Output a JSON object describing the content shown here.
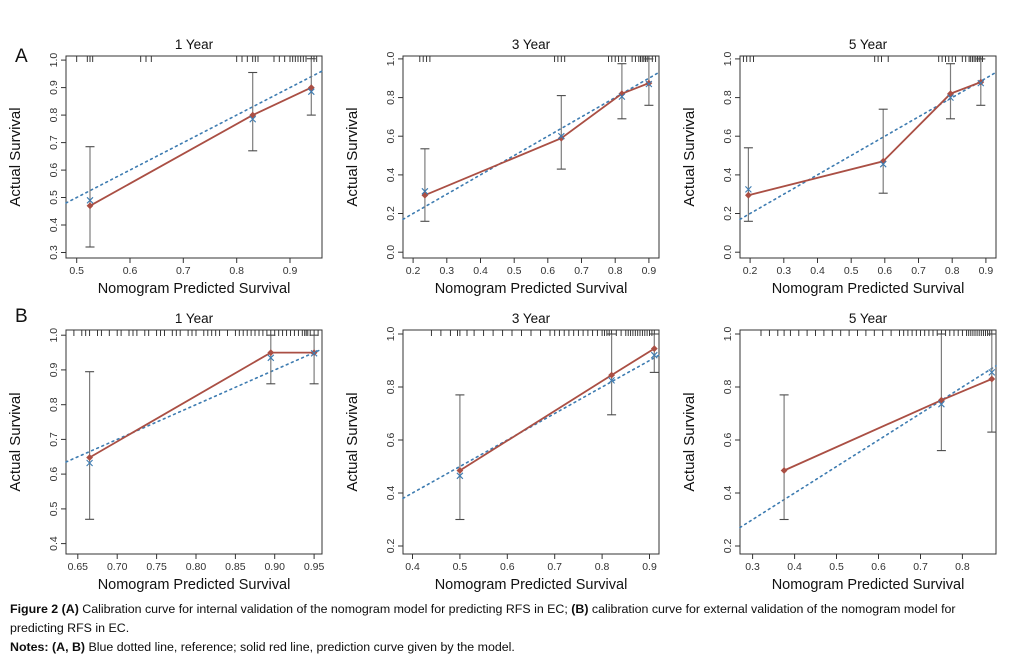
{
  "figure": {
    "row_labels": [
      "A",
      "B"
    ]
  },
  "colors": {
    "prediction_red": "#aa4f44",
    "reference_blue": "#3e7cb1",
    "error_bar_gray": "#7d7d7d",
    "error_cap_gray": "#4a4a4a",
    "axis": "#333333",
    "rug": "#222222",
    "text": "#111111"
  },
  "chart_layout": {
    "grid": false,
    "legend": "none"
  },
  "chart_data": [
    {
      "type": "line",
      "panel_group": "A",
      "title": "1 Year",
      "xlabel": "Nomogram Predicted Survival",
      "ylabel": "Actual Survival",
      "xlim": [
        0.48,
        0.96
      ],
      "ylim": [
        0.28,
        1.015
      ],
      "xticks": [
        0.5,
        0.6,
        0.7,
        0.8,
        0.9
      ],
      "xtick_labels": [
        "0.5",
        "0.6",
        "0.7",
        "0.8",
        "0.9"
      ],
      "yticks": [
        0.3,
        0.4,
        0.5,
        0.6,
        0.7,
        0.8,
        0.9,
        1.0
      ],
      "ytick_labels": [
        "0.3",
        "0.4",
        "0.5",
        "0.6",
        "0.7",
        "0.8",
        "0.9",
        "1.0"
      ],
      "series": [
        {
          "name": "Prediction curve (solid red line)",
          "color_key": "prediction_red",
          "points": [
            {
              "x": 0.525,
              "y": 0.47,
              "err_lo": 0.32,
              "err_hi": 0.685,
              "xmark_y": 0.49
            },
            {
              "x": 0.83,
              "y": 0.8,
              "err_lo": 0.67,
              "err_hi": 0.955,
              "xmark_y": 0.785
            },
            {
              "x": 0.94,
              "y": 0.9,
              "err_lo": 0.8,
              "err_hi": 1.005,
              "xmark_y": 0.885
            }
          ]
        },
        {
          "name": "Reference (blue dotted line)",
          "color_key": "reference_blue",
          "y_equals_x": true
        }
      ],
      "rug_x": [
        0.5,
        0.52,
        0.525,
        0.53,
        0.62,
        0.63,
        0.64,
        0.8,
        0.81,
        0.82,
        0.83,
        0.835,
        0.84,
        0.87,
        0.88,
        0.89,
        0.9,
        0.905,
        0.91,
        0.915,
        0.92,
        0.925,
        0.93,
        0.94,
        0.945,
        0.95
      ]
    },
    {
      "type": "line",
      "panel_group": "A",
      "title": "3 Year",
      "xlabel": "Nomogram Predicted Survival",
      "ylabel": "Actual Survival",
      "xlim": [
        0.17,
        0.93
      ],
      "ylim": [
        -0.03,
        1.015
      ],
      "xticks": [
        0.2,
        0.3,
        0.4,
        0.5,
        0.6,
        0.7,
        0.8,
        0.9
      ],
      "xtick_labels": [
        "0.2",
        "0.3",
        "0.4",
        "0.5",
        "0.6",
        "0.7",
        "0.8",
        "0.9"
      ],
      "yticks": [
        0.0,
        0.2,
        0.4,
        0.6,
        0.8,
        1.0
      ],
      "ytick_labels": [
        "0.0",
        "0.2",
        "0.4",
        "0.6",
        "0.8",
        "1.0"
      ],
      "series": [
        {
          "name": "Prediction curve (solid red line)",
          "color_key": "prediction_red",
          "points": [
            {
              "x": 0.235,
              "y": 0.295,
              "err_lo": 0.16,
              "err_hi": 0.535,
              "xmark_y": 0.315
            },
            {
              "x": 0.64,
              "y": 0.59,
              "err_lo": 0.43,
              "err_hi": 0.81,
              "xmark_y": 0.6
            },
            {
              "x": 0.82,
              "y": 0.82,
              "err_lo": 0.69,
              "err_hi": 0.975,
              "xmark_y": 0.805
            },
            {
              "x": 0.9,
              "y": 0.875,
              "err_lo": 0.76,
              "err_hi": 1.0,
              "xmark_y": 0.87
            }
          ]
        },
        {
          "name": "Reference (blue dotted line)",
          "color_key": "reference_blue",
          "y_equals_x": true
        }
      ],
      "rug_x": [
        0.22,
        0.23,
        0.24,
        0.25,
        0.62,
        0.63,
        0.64,
        0.65,
        0.78,
        0.79,
        0.8,
        0.81,
        0.82,
        0.83,
        0.85,
        0.86,
        0.87,
        0.875,
        0.88,
        0.885,
        0.89,
        0.895,
        0.9,
        0.91,
        0.92
      ]
    },
    {
      "type": "line",
      "panel_group": "A",
      "title": "5 Year",
      "xlabel": "Nomogram Predicted Survival",
      "ylabel": "Actual Survival",
      "xlim": [
        0.17,
        0.93
      ],
      "ylim": [
        -0.03,
        1.015
      ],
      "xticks": [
        0.2,
        0.3,
        0.4,
        0.5,
        0.6,
        0.7,
        0.8,
        0.9
      ],
      "xtick_labels": [
        "0.2",
        "0.3",
        "0.4",
        "0.5",
        "0.6",
        "0.7",
        "0.8",
        "0.9"
      ],
      "yticks": [
        0.0,
        0.2,
        0.4,
        0.6,
        0.8,
        1.0
      ],
      "ytick_labels": [
        "0.0",
        "0.2",
        "0.4",
        "0.6",
        "0.8",
        "1.0"
      ],
      "series": [
        {
          "name": "Prediction curve (solid red line)",
          "color_key": "prediction_red",
          "points": [
            {
              "x": 0.195,
              "y": 0.295,
              "err_lo": 0.16,
              "err_hi": 0.54,
              "xmark_y": 0.325
            },
            {
              "x": 0.595,
              "y": 0.47,
              "err_lo": 0.305,
              "err_hi": 0.74,
              "xmark_y": 0.455
            },
            {
              "x": 0.795,
              "y": 0.82,
              "err_lo": 0.69,
              "err_hi": 0.975,
              "xmark_y": 0.8
            },
            {
              "x": 0.885,
              "y": 0.88,
              "err_lo": 0.76,
              "err_hi": 1.0,
              "xmark_y": 0.875
            }
          ]
        },
        {
          "name": "Reference (blue dotted line)",
          "color_key": "reference_blue",
          "y_equals_x": true
        }
      ],
      "rug_x": [
        0.18,
        0.19,
        0.2,
        0.21,
        0.57,
        0.58,
        0.59,
        0.61,
        0.76,
        0.77,
        0.78,
        0.79,
        0.8,
        0.81,
        0.83,
        0.84,
        0.85,
        0.855,
        0.86,
        0.865,
        0.87,
        0.875,
        0.88,
        0.885,
        0.89
      ]
    },
    {
      "type": "line",
      "panel_group": "B",
      "title": "1 Year",
      "xlabel": "Nomogram Predicted Survival",
      "ylabel": "Actual Survival",
      "xlim": [
        0.635,
        0.96
      ],
      "ylim": [
        0.37,
        1.015
      ],
      "xticks": [
        0.65,
        0.7,
        0.75,
        0.8,
        0.85,
        0.9,
        0.95
      ],
      "xtick_labels": [
        "0.65",
        "0.70",
        "0.75",
        "0.80",
        "0.85",
        "0.90",
        "0.95"
      ],
      "yticks": [
        0.4,
        0.5,
        0.6,
        0.7,
        0.8,
        0.9,
        1.0
      ],
      "ytick_labels": [
        "0.4",
        "0.5",
        "0.6",
        "0.7",
        "0.8",
        "0.9",
        "1.0"
      ],
      "series": [
        {
          "name": "Prediction curve (solid red line)",
          "color_key": "prediction_red",
          "points": [
            {
              "x": 0.665,
              "y": 0.648,
              "err_lo": 0.47,
              "err_hi": 0.895,
              "xmark_y": 0.632
            },
            {
              "x": 0.895,
              "y": 0.95,
              "err_lo": 0.86,
              "err_hi": 1.0,
              "xmark_y": 0.935
            },
            {
              "x": 0.95,
              "y": 0.95,
              "err_lo": 0.86,
              "err_hi": 1.0,
              "xmark_y": 0.948
            }
          ]
        },
        {
          "name": "Reference (blue dotted line)",
          "color_key": "reference_blue",
          "y_equals_x": true
        }
      ],
      "rug_x": [
        0.645,
        0.655,
        0.66,
        0.665,
        0.675,
        0.68,
        0.69,
        0.7,
        0.705,
        0.715,
        0.72,
        0.725,
        0.735,
        0.74,
        0.75,
        0.755,
        0.76,
        0.77,
        0.775,
        0.78,
        0.79,
        0.795,
        0.8,
        0.81,
        0.815,
        0.82,
        0.825,
        0.83,
        0.84,
        0.85,
        0.855,
        0.86,
        0.865,
        0.87,
        0.875,
        0.88,
        0.885,
        0.89,
        0.895,
        0.9,
        0.905,
        0.91,
        0.915,
        0.92,
        0.925,
        0.93,
        0.935,
        0.938,
        0.94,
        0.942,
        0.945,
        0.95,
        0.955
      ]
    },
    {
      "type": "line",
      "panel_group": "B",
      "title": "3 Year",
      "xlabel": "Nomogram Predicted Survival",
      "ylabel": "Actual Survival",
      "xlim": [
        0.38,
        0.92
      ],
      "ylim": [
        0.17,
        1.015
      ],
      "xticks": [
        0.4,
        0.5,
        0.6,
        0.7,
        0.8,
        0.9
      ],
      "xtick_labels": [
        "0.4",
        "0.5",
        "0.6",
        "0.7",
        "0.8",
        "0.9"
      ],
      "yticks": [
        0.2,
        0.4,
        0.6,
        0.8,
        1.0
      ],
      "ytick_labels": [
        "0.2",
        "0.4",
        "0.6",
        "0.8",
        "1.0"
      ],
      "series": [
        {
          "name": "Prediction curve (solid red line)",
          "color_key": "prediction_red",
          "points": [
            {
              "x": 0.5,
              "y": 0.485,
              "err_lo": 0.3,
              "err_hi": 0.77,
              "xmark_y": 0.465
            },
            {
              "x": 0.82,
              "y": 0.845,
              "err_lo": 0.695,
              "err_hi": 1.0,
              "xmark_y": 0.825
            },
            {
              "x": 0.91,
              "y": 0.945,
              "err_lo": 0.855,
              "err_hi": 1.0,
              "xmark_y": 0.92
            }
          ]
        },
        {
          "name": "Reference (blue dotted line)",
          "color_key": "reference_blue",
          "y_equals_x": true
        }
      ],
      "rug_x": [
        0.44,
        0.46,
        0.48,
        0.495,
        0.5,
        0.515,
        0.53,
        0.55,
        0.57,
        0.59,
        0.61,
        0.63,
        0.65,
        0.67,
        0.69,
        0.7,
        0.71,
        0.72,
        0.73,
        0.74,
        0.75,
        0.76,
        0.77,
        0.78,
        0.79,
        0.8,
        0.805,
        0.81,
        0.815,
        0.82,
        0.83,
        0.84,
        0.85,
        0.855,
        0.86,
        0.865,
        0.87,
        0.875,
        0.88,
        0.885,
        0.89,
        0.895,
        0.9,
        0.905,
        0.91
      ]
    },
    {
      "type": "line",
      "panel_group": "B",
      "title": "5 Year",
      "xlabel": "Nomogram Predicted Survival",
      "ylabel": "Actual Survival",
      "xlim": [
        0.27,
        0.88
      ],
      "ylim": [
        0.17,
        1.015
      ],
      "xticks": [
        0.3,
        0.4,
        0.5,
        0.6,
        0.7,
        0.8
      ],
      "xtick_labels": [
        "0.3",
        "0.4",
        "0.5",
        "0.6",
        "0.7",
        "0.8"
      ],
      "yticks": [
        0.2,
        0.4,
        0.6,
        0.8,
        1.0
      ],
      "ytick_labels": [
        "0.2",
        "0.4",
        "0.6",
        "0.8",
        "1.0"
      ],
      "series": [
        {
          "name": "Prediction curve (solid red line)",
          "color_key": "prediction_red",
          "points": [
            {
              "x": 0.375,
              "y": 0.485,
              "err_lo": 0.3,
              "err_hi": 0.77,
              "xmark_y": null
            },
            {
              "x": 0.75,
              "y": 0.75,
              "err_lo": 0.56,
              "err_hi": 1.0,
              "xmark_y": 0.735
            },
            {
              "x": 0.87,
              "y": 0.83,
              "err_lo": 0.63,
              "err_hi": 1.0,
              "xmark_y": 0.855
            }
          ]
        },
        {
          "name": "Reference (blue dotted line)",
          "color_key": "reference_blue",
          "y_equals_x": true
        }
      ],
      "rug_x": [
        0.32,
        0.34,
        0.36,
        0.375,
        0.39,
        0.41,
        0.43,
        0.45,
        0.47,
        0.49,
        0.51,
        0.53,
        0.55,
        0.57,
        0.59,
        0.61,
        0.63,
        0.65,
        0.66,
        0.67,
        0.68,
        0.69,
        0.7,
        0.71,
        0.72,
        0.73,
        0.74,
        0.75,
        0.76,
        0.77,
        0.78,
        0.79,
        0.8,
        0.81,
        0.815,
        0.82,
        0.825,
        0.83,
        0.835,
        0.84,
        0.845,
        0.85,
        0.855,
        0.86,
        0.865,
        0.87
      ]
    }
  ],
  "caption": {
    "para1": [
      {
        "t": "Figure 2 (A) ",
        "b": true
      },
      {
        "t": "Calibration curve for internal validation of the nomogram model for predicting RFS in EC; ",
        "b": false
      },
      {
        "t": "(B)",
        "b": true
      },
      {
        "t": " calibration curve for external validation of the nomogram model for predicting RFS in EC.",
        "b": false
      }
    ],
    "para2": [
      {
        "t": "Notes: (A, B) ",
        "b": true
      },
      {
        "t": "Blue dotted line, reference; solid red line, prediction curve given by the model.",
        "b": false
      }
    ]
  }
}
